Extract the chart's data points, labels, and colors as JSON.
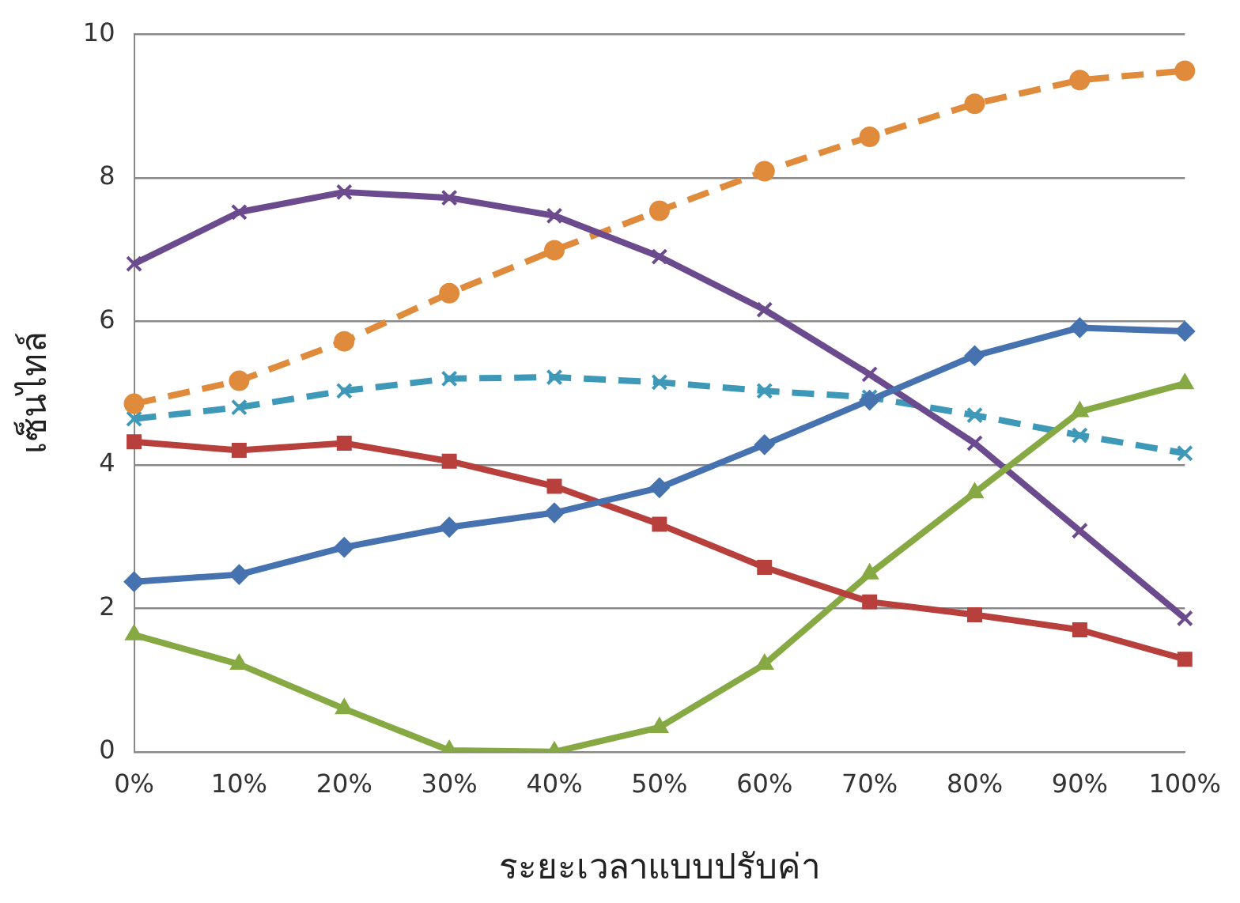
{
  "chart_data": {
    "type": "line",
    "xlabel": "ระยะเวลาแบบปรับค่า",
    "ylabel": "เซ็นไทล์",
    "categories": [
      "0%",
      "10%",
      "20%",
      "30%",
      "40%",
      "50%",
      "60%",
      "70%",
      "80%",
      "90%",
      "100%"
    ],
    "ylim": [
      0,
      10
    ],
    "yticks": [
      0,
      2,
      4,
      6,
      8,
      10
    ],
    "grid": "y",
    "series": [
      {
        "color": "#4672b0",
        "marker": "diamond",
        "line_style": "solid",
        "values": [
          2.37,
          2.47,
          2.85,
          3.13,
          3.33,
          3.68,
          4.28,
          4.9,
          5.52,
          5.91,
          5.86
        ]
      },
      {
        "color": "#b8403c",
        "marker": "square",
        "line_style": "solid",
        "values": [
          4.32,
          4.2,
          4.3,
          4.05,
          3.7,
          3.17,
          2.57,
          2.09,
          1.91,
          1.7,
          1.29
        ]
      },
      {
        "color": "#86a943",
        "marker": "triangle",
        "line_style": "solid",
        "values": [
          1.63,
          1.22,
          0.6,
          0.02,
          0,
          0.34,
          1.22,
          2.48,
          3.61,
          4.74,
          5.13
        ]
      },
      {
        "color": "#6c4a8e",
        "marker": "cross",
        "line_style": "solid",
        "values": [
          6.8,
          7.52,
          7.8,
          7.72,
          7.47,
          6.9,
          6.16,
          5.26,
          4.3,
          3.08,
          1.86
        ]
      },
      {
        "color": "#e08a3c",
        "marker": "circle",
        "line_style": "dashed",
        "values": [
          4.85,
          5.17,
          5.72,
          6.39,
          6.99,
          7.54,
          8.09,
          8.57,
          9.03,
          9.36,
          9.49
        ]
      },
      {
        "color": "#3e98b8",
        "marker": "cross",
        "line_style": "dashed",
        "values": [
          4.64,
          4.8,
          5.03,
          5.2,
          5.22,
          5.15,
          5.03,
          4.94,
          4.69,
          4.41,
          4.16
        ]
      }
    ]
  }
}
